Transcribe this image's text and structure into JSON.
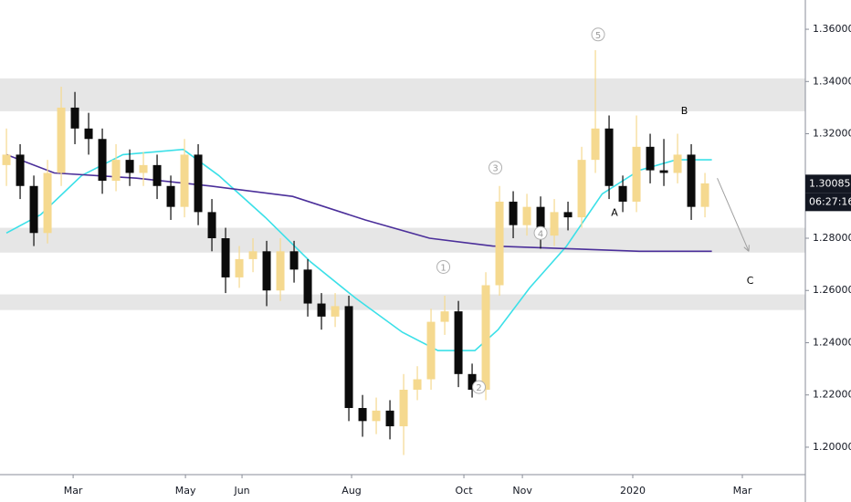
{
  "chart_data": {
    "type": "candlestick",
    "up_color": "#f5d98f",
    "down_color": "#0b0b0b",
    "candles": [
      [
        1.308,
        1.322,
        1.3,
        1.312
      ],
      [
        1.312,
        1.316,
        1.295,
        1.3
      ],
      [
        1.3,
        1.304,
        1.277,
        1.282
      ],
      [
        1.282,
        1.31,
        1.278,
        1.305
      ],
      [
        1.305,
        1.338,
        1.3,
        1.33
      ],
      [
        1.33,
        1.336,
        1.316,
        1.322
      ],
      [
        1.322,
        1.328,
        1.312,
        1.318
      ],
      [
        1.318,
        1.322,
        1.297,
        1.302
      ],
      [
        1.302,
        1.316,
        1.298,
        1.31
      ],
      [
        1.31,
        1.314,
        1.3,
        1.305
      ],
      [
        1.305,
        1.313,
        1.3,
        1.308
      ],
      [
        1.308,
        1.312,
        1.295,
        1.3
      ],
      [
        1.3,
        1.304,
        1.287,
        1.292
      ],
      [
        1.292,
        1.318,
        1.288,
        1.312
      ],
      [
        1.312,
        1.316,
        1.285,
        1.29
      ],
      [
        1.29,
        1.295,
        1.275,
        1.28
      ],
      [
        1.28,
        1.284,
        1.259,
        1.265
      ],
      [
        1.265,
        1.277,
        1.261,
        1.272
      ],
      [
        1.272,
        1.28,
        1.267,
        1.275
      ],
      [
        1.275,
        1.279,
        1.254,
        1.26
      ],
      [
        1.26,
        1.28,
        1.256,
        1.275
      ],
      [
        1.275,
        1.279,
        1.263,
        1.268
      ],
      [
        1.268,
        1.272,
        1.25,
        1.255
      ],
      [
        1.255,
        1.259,
        1.245,
        1.25
      ],
      [
        1.25,
        1.259,
        1.246,
        1.254
      ],
      [
        1.254,
        1.258,
        1.21,
        1.215
      ],
      [
        1.215,
        1.22,
        1.204,
        1.21
      ],
      [
        1.21,
        1.219,
        1.205,
        1.214
      ],
      [
        1.214,
        1.218,
        1.203,
        1.208
      ],
      [
        1.208,
        1.228,
        1.197,
        1.222
      ],
      [
        1.222,
        1.231,
        1.218,
        1.226
      ],
      [
        1.226,
        1.253,
        1.222,
        1.248
      ],
      [
        1.248,
        1.258,
        1.243,
        1.252
      ],
      [
        1.252,
        1.256,
        1.223,
        1.228
      ],
      [
        1.228,
        1.232,
        1.219,
        1.222
      ],
      [
        1.222,
        1.267,
        1.218,
        1.262
      ],
      [
        1.262,
        1.3,
        1.258,
        1.294
      ],
      [
        1.294,
        1.298,
        1.28,
        1.285
      ],
      [
        1.285,
        1.297,
        1.281,
        1.292
      ],
      [
        1.292,
        1.296,
        1.276,
        1.281
      ],
      [
        1.281,
        1.295,
        1.277,
        1.29
      ],
      [
        1.29,
        1.294,
        1.283,
        1.288
      ],
      [
        1.288,
        1.315,
        1.284,
        1.31
      ],
      [
        1.31,
        1.352,
        1.305,
        1.322
      ],
      [
        1.322,
        1.327,
        1.295,
        1.3
      ],
      [
        1.3,
        1.304,
        1.29,
        1.294
      ],
      [
        1.294,
        1.327,
        1.29,
        1.315
      ],
      [
        1.315,
        1.32,
        1.301,
        1.306
      ],
      [
        1.306,
        1.318,
        1.3,
        1.305
      ],
      [
        1.305,
        1.32,
        1.301,
        1.312
      ],
      [
        1.312,
        1.316,
        1.287,
        1.292
      ],
      [
        1.292,
        1.305,
        1.288,
        1.301
      ]
    ],
    "lines": [
      {
        "color": "#3be0e8",
        "x": [
          0,
          2.5,
          5.5,
          8.5,
          12.9,
          15.5,
          18.9,
          22.2,
          25.5,
          28.9,
          31.5,
          34.2,
          35.9,
          38.2,
          40.9,
          43.5,
          46.2,
          48.9,
          51.5
        ],
        "values": [
          1.282,
          1.289,
          1.304,
          1.312,
          1.314,
          1.304,
          1.288,
          1.271,
          1.257,
          1.244,
          1.237,
          1.237,
          1.245,
          1.261,
          1.277,
          1.297,
          1.306,
          1.31,
          1.31
        ]
      },
      {
        "color": "#4b2f9a",
        "x": [
          0,
          3.5,
          9.5,
          14.9,
          20.9,
          26.2,
          30.9,
          35.5,
          40.9,
          46.2,
          51.5
        ],
        "values": [
          1.312,
          1.305,
          1.303,
          1.3,
          1.296,
          1.287,
          1.28,
          1.277,
          1.276,
          1.275,
          1.275
        ]
      }
    ],
    "zones": [
      [
        1.3286,
        1.3412
      ],
      [
        1.2745,
        1.284
      ],
      [
        1.2525,
        1.2585
      ]
    ],
    "zone_color": "#e6e6e6",
    "annotations": [
      {
        "text": "1",
        "x": 31.9,
        "y": 1.269,
        "circled": true
      },
      {
        "text": "2",
        "x": 34.5,
        "y": 1.223,
        "circled": true
      },
      {
        "text": "3",
        "x": 35.7,
        "y": 1.307,
        "circled": true
      },
      {
        "text": "4",
        "x": 39,
        "y": 1.282,
        "circled": true
      },
      {
        "text": "5",
        "x": 43.2,
        "y": 1.358,
        "circled": true
      },
      {
        "text": "A",
        "x": 44.4,
        "y": 1.29,
        "circled": false
      },
      {
        "text": "B",
        "x": 49.5,
        "y": 1.329,
        "circled": false
      },
      {
        "text": "C",
        "x": 54.3,
        "y": 1.264,
        "circled": false
      }
    ],
    "arrow": {
      "from": [
        51.9,
        1.303
      ],
      "to": [
        54.2,
        1.275
      ]
    },
    "last_price": {
      "value": 1.30085,
      "label": "1.30085"
    },
    "countdown": "06:27:16",
    "xlim": [
      -0.47,
      58.33
    ],
    "ylim": [
      1.1895,
      1.3712
    ],
    "xticks": [
      {
        "value": 4.87,
        "label": "Mar"
      },
      {
        "value": 13.07,
        "label": "May"
      },
      {
        "value": 17.2,
        "label": "Jun"
      },
      {
        "value": 25.2,
        "label": "Aug"
      },
      {
        "value": 33.4,
        "label": "Oct"
      },
      {
        "value": 37.67,
        "label": "Nov"
      },
      {
        "value": 45.73,
        "label": "2020"
      },
      {
        "value": 53.73,
        "label": "Mar"
      }
    ],
    "yticks": [
      {
        "value": 1.2,
        "label": "1.20000"
      },
      {
        "value": 1.22,
        "label": "1.22000"
      },
      {
        "value": 1.24,
        "label": "1.24000"
      },
      {
        "value": 1.26,
        "label": "1.26000"
      },
      {
        "value": 1.28,
        "label": "1.28000"
      },
      {
        "value": 1.32,
        "label": "1.32000"
      },
      {
        "value": 1.34,
        "label": "1.34000"
      },
      {
        "value": 1.36,
        "label": "1.36000"
      }
    ]
  }
}
